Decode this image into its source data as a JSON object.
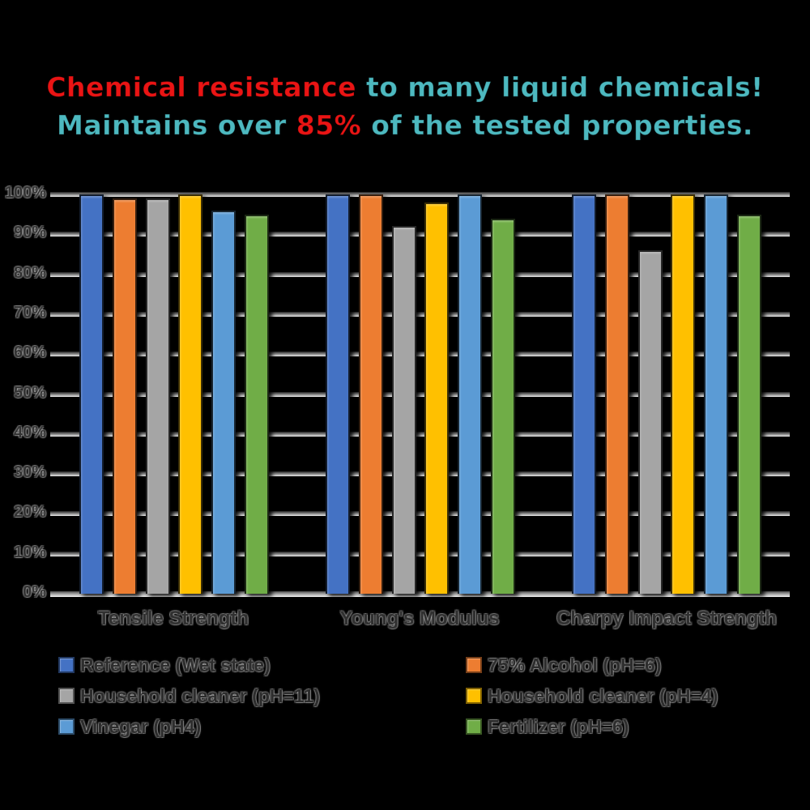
{
  "title": {
    "line1_red": "Chemical resistance",
    "line1_teal": " to many liquid chemicals!",
    "line2_teal_a": "Maintains over ",
    "line2_red": "85%",
    "line2_teal_b": " of the tested properties.",
    "red_color": "#ea1414",
    "teal_color": "#4db9c0"
  },
  "chart_data": {
    "type": "bar",
    "title": "Chemical resistance to many liquid chemicals! Maintains over 85% of the tested properties.",
    "xlabel": "",
    "ylabel": "",
    "ylim": [
      0,
      100
    ],
    "grid": true,
    "legend_position": "bottom, two columns",
    "y_ticks": [
      "0%",
      "10%",
      "20%",
      "30%",
      "40%",
      "50%",
      "60%",
      "70%",
      "80%",
      "90%",
      "100%"
    ],
    "categories": [
      "Tensile Strength",
      "Young's Modulus",
      "Charpy Impact Strength"
    ],
    "series": [
      {
        "name": "Reference (Wet state)",
        "color": "#4472C4",
        "values": [
          100,
          100,
          100
        ]
      },
      {
        "name": "75% Alcohol (pH=6)",
        "color": "#ED7D31",
        "values": [
          99,
          100,
          100
        ]
      },
      {
        "name": "Household cleaner (pH=11)",
        "color": "#A5A5A5",
        "values": [
          99,
          92,
          86
        ]
      },
      {
        "name": "Household cleaner (pH=4)",
        "color": "#FFC000",
        "values": [
          100,
          98,
          100
        ]
      },
      {
        "name": "Vinegar (pH4)",
        "color": "#5B9BD5",
        "values": [
          96,
          100,
          100
        ]
      },
      {
        "name": "Fertilizer (pH=6)",
        "color": "#70AD47",
        "values": [
          95,
          94,
          95
        ]
      }
    ]
  }
}
